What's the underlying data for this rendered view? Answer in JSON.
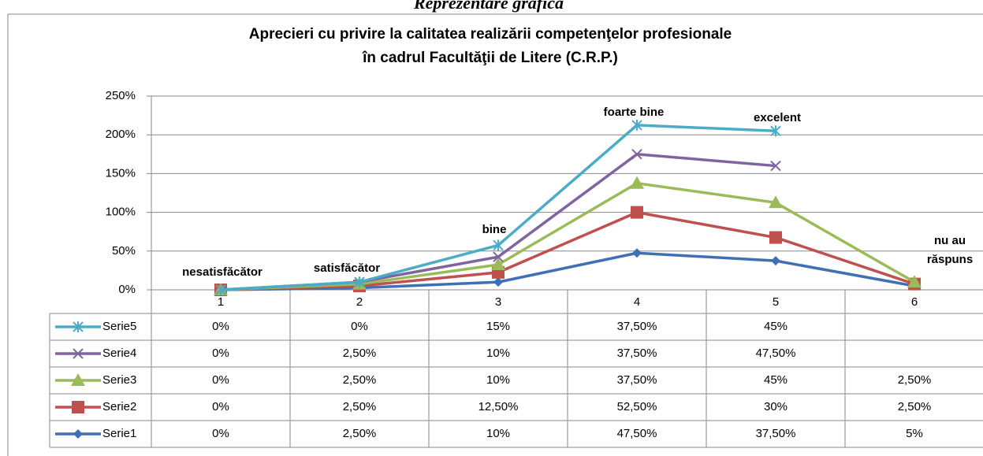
{
  "chart_data": {
    "type": "stacked-line",
    "heading": "Reprezentare grafică",
    "title": [
      "Aprecieri cu privire la calitatea realizării competenţelor profesionale",
      "în cadrul Facultăţii de Litere (C.R.P.)"
    ],
    "categories": [
      "1",
      "2",
      "3",
      "4",
      "5",
      "6"
    ],
    "annotations": [
      "nesatisfăcător",
      "satisfăcător",
      "bine",
      "foarte bine",
      "excelent",
      "nu au răspuns"
    ],
    "ylim": [
      0,
      250
    ],
    "yticks": [
      {
        "value": 0,
        "label": "0%"
      },
      {
        "value": 50,
        "label": "50%"
      },
      {
        "value": 100,
        "label": "100%"
      },
      {
        "value": 150,
        "label": "150%"
      },
      {
        "value": 200,
        "label": "200%"
      },
      {
        "value": 250,
        "label": "250%"
      }
    ],
    "grid": true,
    "series": [
      {
        "name": "Serie1",
        "color": "#3f6fb5",
        "marker": "diamond",
        "values": [
          0,
          2.5,
          10,
          47.5,
          37.5,
          5
        ],
        "value_labels": [
          "0%",
          "2,50%",
          "10%",
          "47,50%",
          "37,50%",
          "5%"
        ]
      },
      {
        "name": "Serie2",
        "color": "#c0504d",
        "marker": "square",
        "values": [
          0,
          2.5,
          12.5,
          52.5,
          30,
          2.5
        ],
        "value_labels": [
          "0%",
          "2,50%",
          "12,50%",
          "52,50%",
          "30%",
          "2,50%"
        ]
      },
      {
        "name": "Serie3",
        "color": "#9bbb59",
        "marker": "triangle",
        "values": [
          0,
          2.5,
          10,
          37.5,
          45,
          2.5
        ],
        "value_labels": [
          "0%",
          "2,50%",
          "10%",
          "37,50%",
          "45%",
          "2,50%"
        ]
      },
      {
        "name": "Serie4",
        "color": "#8064a2",
        "marker": "x",
        "values": [
          0,
          2.5,
          10,
          37.5,
          47.5,
          null
        ],
        "value_labels": [
          "0%",
          "2,50%",
          "10%",
          "37,50%",
          "47,50%",
          null
        ]
      },
      {
        "name": "Serie5",
        "color": "#4bacc6",
        "marker": "star",
        "values": [
          0,
          0,
          15,
          37.5,
          45,
          null
        ],
        "value_labels": [
          "0%",
          "0%",
          "15%",
          "37,50%",
          "45%",
          null
        ]
      }
    ]
  }
}
